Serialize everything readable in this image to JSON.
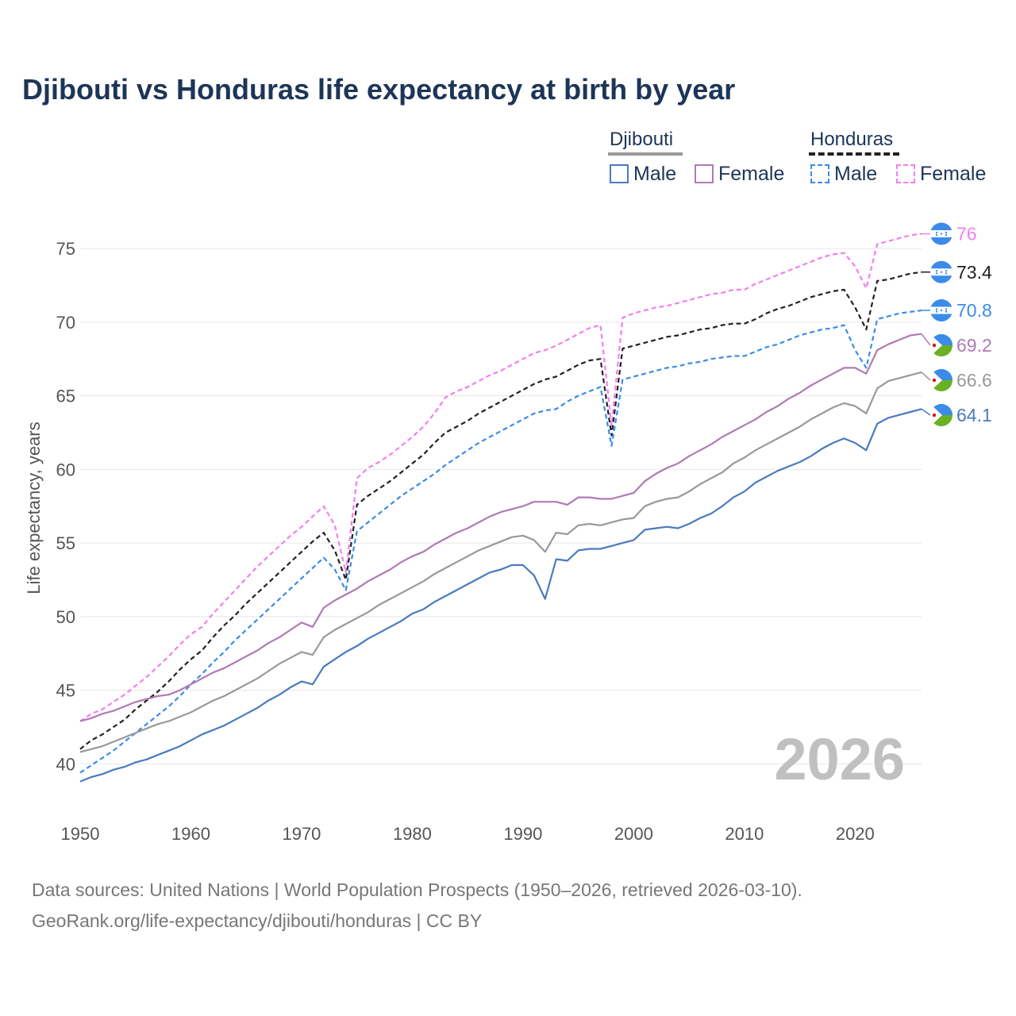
{
  "title": "Djibouti vs Honduras life expectancy at birth by year",
  "legend": {
    "groups": [
      {
        "name": "Djibouti",
        "items": [
          "Male",
          "Female"
        ]
      },
      {
        "name": "Honduras",
        "items": [
          "Male",
          "Female"
        ]
      }
    ]
  },
  "year_watermark": "2026",
  "source_line1": "Data sources: United Nations | World Population Prospects (1950–2026, retrieved 2026-03-10).",
  "source_line2": "GeoRank.org/life-expectancy/djibouti/honduras | CC BY",
  "colors": {
    "title": "#1d3557",
    "djibouti_total": "#999999",
    "djibouti_male": "#4a7bbf",
    "djibouti_female": "#b07ab5",
    "honduras_total": "#222222",
    "honduras_male": "#3b8beb",
    "honduras_female": "#f27ff0",
    "grid": "#e6e6e6",
    "watermark": "#c0c0c0",
    "tick": "#555555"
  },
  "chart_data": {
    "type": "line",
    "title": "Djibouti vs Honduras life expectancy at birth by year",
    "xlabel": "",
    "ylabel": "Life expectancy, years",
    "xlim": [
      1950,
      2026
    ],
    "ylim": [
      37,
      77
    ],
    "xticks": [
      1950,
      1960,
      1970,
      1980,
      1990,
      2000,
      2010,
      2020
    ],
    "yticks": [
      40,
      45,
      50,
      55,
      60,
      65,
      70,
      75
    ],
    "grid": true,
    "legend_position": "top-right",
    "x": [
      1950,
      1951,
      1952,
      1953,
      1954,
      1955,
      1956,
      1957,
      1958,
      1959,
      1960,
      1961,
      1962,
      1963,
      1964,
      1965,
      1966,
      1967,
      1968,
      1969,
      1970,
      1971,
      1972,
      1973,
      1974,
      1975,
      1976,
      1977,
      1978,
      1979,
      1980,
      1981,
      1982,
      1983,
      1984,
      1985,
      1986,
      1987,
      1988,
      1989,
      1990,
      1991,
      1992,
      1993,
      1994,
      1995,
      1996,
      1997,
      1998,
      1999,
      2000,
      2001,
      2002,
      2003,
      2004,
      2005,
      2006,
      2007,
      2008,
      2009,
      2010,
      2011,
      2012,
      2013,
      2014,
      2015,
      2016,
      2017,
      2018,
      2019,
      2020,
      2021,
      2022,
      2023,
      2024,
      2025,
      2026
    ],
    "series": [
      {
        "name": "Honduras Female",
        "country": "Honduras",
        "sex": "Female",
        "dashed": true,
        "end_label": "76",
        "values": [
          42.9,
          43.4,
          43.7,
          44.2,
          44.7,
          45.3,
          45.9,
          46.6,
          47.3,
          48.1,
          48.8,
          49.3,
          50.2,
          51.0,
          51.8,
          52.6,
          53.4,
          54.1,
          54.8,
          55.5,
          56.1,
          56.8,
          57.5,
          56.2,
          53.0,
          59.4,
          60.1,
          60.5,
          61.0,
          61.6,
          62.2,
          62.9,
          63.8,
          64.9,
          65.3,
          65.6,
          66.0,
          66.4,
          66.7,
          67.1,
          67.5,
          67.9,
          68.1,
          68.4,
          68.8,
          69.2,
          69.6,
          69.8,
          63.0,
          70.3,
          70.6,
          70.8,
          71.0,
          71.1,
          71.3,
          71.5,
          71.7,
          71.9,
          72.0,
          72.2,
          72.2,
          72.6,
          72.9,
          73.2,
          73.5,
          73.8,
          74.1,
          74.4,
          74.6,
          74.7,
          73.8,
          72.3,
          75.3,
          75.5,
          75.7,
          75.9,
          76.0
        ]
      },
      {
        "name": "Honduras Total",
        "country": "Honduras",
        "sex": "Both",
        "dashed": true,
        "end_label": "73.4",
        "values": [
          41.0,
          41.6,
          42.0,
          42.5,
          43.0,
          43.7,
          44.3,
          44.9,
          45.6,
          46.4,
          47.1,
          47.7,
          48.6,
          49.4,
          50.1,
          50.9,
          51.6,
          52.3,
          53.0,
          53.7,
          54.4,
          55.1,
          55.7,
          54.5,
          52.5,
          57.6,
          58.2,
          58.7,
          59.2,
          59.8,
          60.4,
          61.0,
          61.8,
          62.5,
          62.9,
          63.3,
          63.8,
          64.2,
          64.6,
          65.0,
          65.4,
          65.8,
          66.1,
          66.3,
          66.7,
          67.1,
          67.4,
          67.5,
          62.3,
          68.2,
          68.4,
          68.6,
          68.8,
          69.0,
          69.1,
          69.3,
          69.5,
          69.6,
          69.8,
          69.9,
          69.9,
          70.2,
          70.6,
          70.9,
          71.1,
          71.4,
          71.7,
          71.9,
          72.1,
          72.2,
          71.0,
          69.5,
          72.8,
          72.9,
          73.1,
          73.3,
          73.4
        ]
      },
      {
        "name": "Honduras Male",
        "country": "Honduras",
        "sex": "Male",
        "dashed": true,
        "end_label": "70.8",
        "values": [
          39.4,
          39.9,
          40.4,
          40.9,
          41.5,
          42.1,
          42.7,
          43.3,
          43.9,
          44.6,
          45.4,
          46.1,
          46.9,
          47.6,
          48.4,
          49.1,
          49.8,
          50.5,
          51.2,
          51.9,
          52.6,
          53.3,
          54.0,
          53.2,
          51.8,
          55.8,
          56.4,
          57.0,
          57.6,
          58.2,
          58.7,
          59.2,
          59.7,
          60.3,
          60.8,
          61.3,
          61.8,
          62.2,
          62.6,
          63.0,
          63.4,
          63.8,
          64.0,
          64.1,
          64.6,
          65.0,
          65.3,
          65.6,
          61.6,
          66.1,
          66.3,
          66.5,
          66.7,
          66.9,
          67.0,
          67.2,
          67.3,
          67.5,
          67.6,
          67.7,
          67.7,
          68.0,
          68.3,
          68.5,
          68.8,
          69.1,
          69.3,
          69.5,
          69.6,
          69.8,
          68.1,
          66.9,
          70.2,
          70.4,
          70.6,
          70.7,
          70.8
        ]
      },
      {
        "name": "Djibouti Female",
        "country": "Djibouti",
        "sex": "Female",
        "dashed": false,
        "end_label": "69.2",
        "values": [
          42.9,
          43.1,
          43.4,
          43.6,
          43.9,
          44.2,
          44.4,
          44.6,
          44.7,
          45.0,
          45.4,
          45.8,
          46.2,
          46.5,
          46.9,
          47.3,
          47.7,
          48.2,
          48.6,
          49.1,
          49.6,
          49.3,
          50.6,
          51.1,
          51.5,
          51.9,
          52.4,
          52.8,
          53.2,
          53.7,
          54.1,
          54.4,
          54.9,
          55.3,
          55.7,
          56.0,
          56.4,
          56.8,
          57.1,
          57.3,
          57.5,
          57.8,
          57.8,
          57.8,
          57.6,
          58.1,
          58.1,
          58.0,
          58.0,
          58.2,
          58.4,
          59.2,
          59.7,
          60.1,
          60.4,
          60.9,
          61.3,
          61.7,
          62.2,
          62.6,
          63.0,
          63.4,
          63.9,
          64.3,
          64.8,
          65.2,
          65.7,
          66.1,
          66.5,
          66.9,
          66.9,
          66.5,
          68.1,
          68.5,
          68.8,
          69.1,
          69.2
        ]
      },
      {
        "name": "Djibouti Total",
        "country": "Djibouti",
        "sex": "Both",
        "dashed": false,
        "end_label": "66.6",
        "values": [
          40.8,
          41.0,
          41.2,
          41.5,
          41.8,
          42.1,
          42.4,
          42.7,
          42.9,
          43.2,
          43.5,
          43.9,
          44.3,
          44.6,
          45.0,
          45.4,
          45.8,
          46.3,
          46.8,
          47.2,
          47.6,
          47.4,
          48.6,
          49.1,
          49.5,
          49.9,
          50.3,
          50.8,
          51.2,
          51.6,
          52.0,
          52.4,
          52.9,
          53.3,
          53.7,
          54.1,
          54.5,
          54.8,
          55.1,
          55.4,
          55.5,
          55.2,
          54.4,
          55.7,
          55.6,
          56.2,
          56.3,
          56.2,
          56.4,
          56.6,
          56.7,
          57.5,
          57.8,
          58.0,
          58.1,
          58.5,
          59.0,
          59.4,
          59.8,
          60.4,
          60.8,
          61.3,
          61.7,
          62.1,
          62.5,
          62.9,
          63.4,
          63.8,
          64.2,
          64.5,
          64.3,
          63.8,
          65.5,
          66.0,
          66.2,
          66.4,
          66.6
        ]
      },
      {
        "name": "Djibouti Male",
        "country": "Djibouti",
        "sex": "Male",
        "dashed": false,
        "end_label": "64.1",
        "values": [
          38.8,
          39.1,
          39.3,
          39.6,
          39.8,
          40.1,
          40.3,
          40.6,
          40.9,
          41.2,
          41.6,
          42.0,
          42.3,
          42.6,
          43.0,
          43.4,
          43.8,
          44.3,
          44.7,
          45.2,
          45.6,
          45.4,
          46.6,
          47.1,
          47.6,
          48.0,
          48.5,
          48.9,
          49.3,
          49.7,
          50.2,
          50.5,
          51.0,
          51.4,
          51.8,
          52.2,
          52.6,
          53.0,
          53.2,
          53.5,
          53.5,
          52.8,
          51.2,
          53.9,
          53.8,
          54.5,
          54.6,
          54.6,
          54.8,
          55.0,
          55.2,
          55.9,
          56.0,
          56.1,
          56.0,
          56.3,
          56.7,
          57.0,
          57.5,
          58.1,
          58.5,
          59.1,
          59.5,
          59.9,
          60.2,
          60.5,
          60.9,
          61.4,
          61.8,
          62.1,
          61.8,
          61.3,
          63.1,
          63.5,
          63.7,
          63.9,
          64.1
        ]
      }
    ]
  }
}
